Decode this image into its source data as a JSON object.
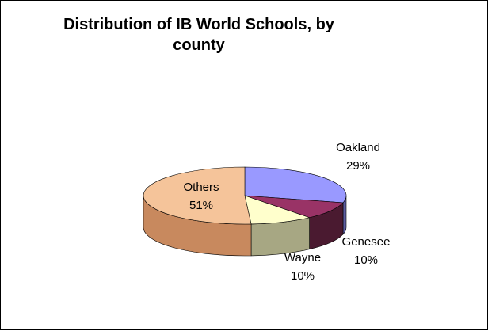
{
  "chart_data": {
    "type": "pie",
    "title_lines": [
      "Distribution of IB World Schools, by",
      "county"
    ],
    "slices": [
      {
        "label": "Oakland",
        "percent_text": "29%",
        "value": 29,
        "color": "#9999ff",
        "side_color": "#5c5ca0"
      },
      {
        "label": "Genesee",
        "percent_text": "10%",
        "value": 10,
        "color": "#993366",
        "side_color": "#4a1a30"
      },
      {
        "label": "Wayne",
        "percent_text": "10%",
        "value": 10,
        "color": "#ffffcc",
        "side_color": "#a7a783"
      },
      {
        "label": "Others",
        "percent_text": "51%",
        "value": 51,
        "color": "#f5c49a",
        "side_color": "#c8895e"
      }
    ],
    "legend": "none",
    "style": "3d-pie"
  }
}
